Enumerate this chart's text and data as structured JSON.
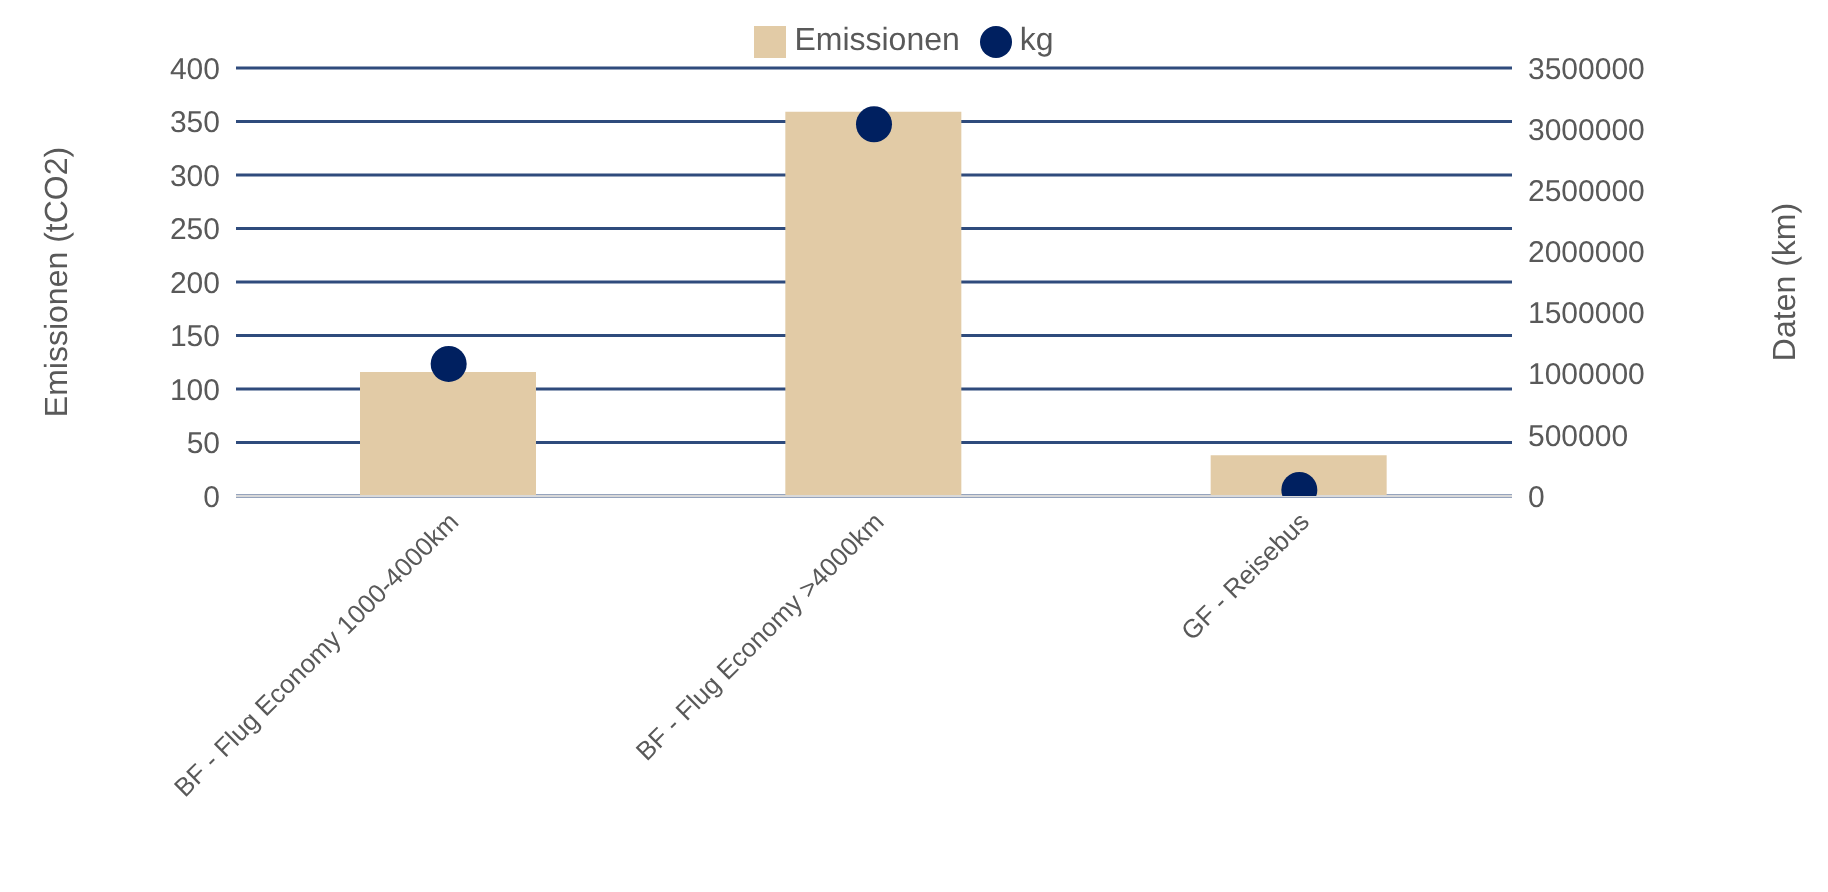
{
  "chart_data": {
    "type": "bar",
    "categories": [
      "BF - Flug Economy 1000-4000km",
      "BF - Flug Economy >4000km",
      "GF - Reisebus"
    ],
    "series": [
      {
        "name": "Emissionen",
        "color": "#e2cba6",
        "values": [
          116,
          359,
          38
        ]
      },
      {
        "name": "kg",
        "type": "scatter",
        "axis": "y2",
        "color": "#002060",
        "values": [
          1080000,
          3040000,
          50000
        ]
      }
    ],
    "ylabel": "Emissionen (tCO2)",
    "y2label": "Daten (km)",
    "ylim": [
      0,
      400
    ],
    "yticks": [
      0,
      50,
      100,
      150,
      200,
      250,
      300,
      350,
      400
    ],
    "y2lim": [
      0,
      3500000
    ],
    "y2ticks": [
      0,
      500000,
      1000000,
      1500000,
      2000000,
      2500000,
      3000000,
      3500000
    ],
    "grid": "y",
    "legend": "top",
    "marker": "circle"
  }
}
